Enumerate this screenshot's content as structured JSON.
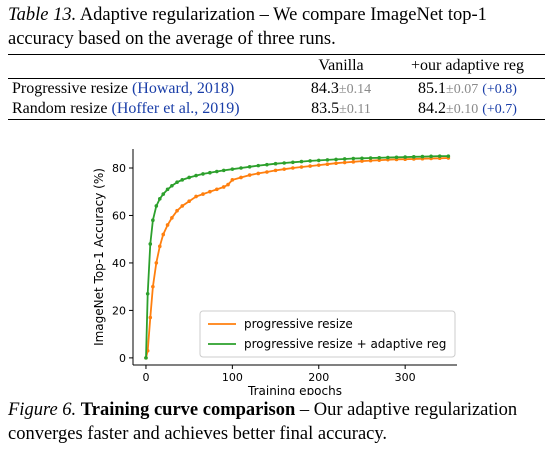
{
  "table_caption": {
    "label": "Table 13.",
    "text": "Adaptive regularization – We compare ImageNet top-1 accuracy based on the average of three runs."
  },
  "table": {
    "headers": [
      "",
      "Vanilla",
      "+our adaptive reg"
    ],
    "rows": [
      {
        "method": "Progressive resize",
        "citation": "(Howard, 2018)",
        "vanilla": "84.3",
        "vanilla_std": "±0.14",
        "adaptive": "85.1",
        "adaptive_std": "±0.07",
        "gain": "(+0.8)"
      },
      {
        "method": "Random resize",
        "citation": "(Hoffer et al., 2019)",
        "vanilla": "83.5",
        "vanilla_std": "±0.11",
        "adaptive": "84.2",
        "adaptive_std": "±0.10",
        "gain": "(+0.7)"
      }
    ]
  },
  "chart_data": {
    "type": "line",
    "title": "",
    "xlabel": "Training epochs",
    "ylabel": "ImageNet Top-1 Accuracy (%)",
    "xlim": [
      -15,
      360
    ],
    "ylim": [
      -3,
      88
    ],
    "xticks": [
      0,
      100,
      200,
      300
    ],
    "yticks": [
      0,
      20,
      40,
      60,
      80
    ],
    "grid": false,
    "legend_position": "bottom-right",
    "series": [
      {
        "name": "progressive resize",
        "color": "#ff7f0e",
        "x": [
          0,
          2,
          5,
          8,
          12,
          16,
          20,
          25,
          30,
          36,
          42,
          50,
          58,
          66,
          74,
          82,
          90,
          95,
          100,
          110,
          120,
          130,
          140,
          150,
          160,
          170,
          180,
          190,
          200,
          210,
          220,
          230,
          240,
          250,
          260,
          270,
          280,
          290,
          300,
          310,
          320,
          330,
          340,
          350
        ],
        "y": [
          0,
          3,
          17,
          30,
          40,
          47,
          52,
          56,
          59,
          62,
          64,
          66,
          68,
          69,
          70,
          71,
          72,
          73,
          75,
          76,
          77,
          77.7,
          78.3,
          79,
          79.5,
          80,
          80.4,
          80.8,
          81.2,
          81.6,
          82,
          82.3,
          82.6,
          82.9,
          83.1,
          83.3,
          83.5,
          83.6,
          83.7,
          83.8,
          83.9,
          84,
          84.1,
          84.2
        ]
      },
      {
        "name": "progressive resize + adaptive reg",
        "color": "#2ca02c",
        "x": [
          0,
          2,
          5,
          8,
          12,
          16,
          20,
          25,
          30,
          36,
          42,
          50,
          58,
          66,
          74,
          82,
          90,
          100,
          110,
          120,
          130,
          140,
          150,
          160,
          170,
          180,
          190,
          200,
          210,
          220,
          230,
          240,
          250,
          260,
          270,
          280,
          290,
          300,
          310,
          320,
          330,
          340,
          350
        ],
        "y": [
          0,
          27,
          48,
          58,
          64,
          67,
          69,
          71,
          72.5,
          74,
          75,
          76,
          76.8,
          77.5,
          78,
          78.5,
          79,
          79.5,
          80,
          80.5,
          81,
          81.4,
          81.8,
          82.1,
          82.4,
          82.7,
          83,
          83.2,
          83.4,
          83.6,
          83.8,
          84,
          84.1,
          84.2,
          84.3,
          84.4,
          84.5,
          84.6,
          84.7,
          84.8,
          84.9,
          85,
          85
        ]
      }
    ]
  },
  "figure_caption": {
    "label": "Figure 6.",
    "title": "Training curve comparison",
    "text": " – Our adaptive regularization converges faster and achieves better final accuracy."
  }
}
